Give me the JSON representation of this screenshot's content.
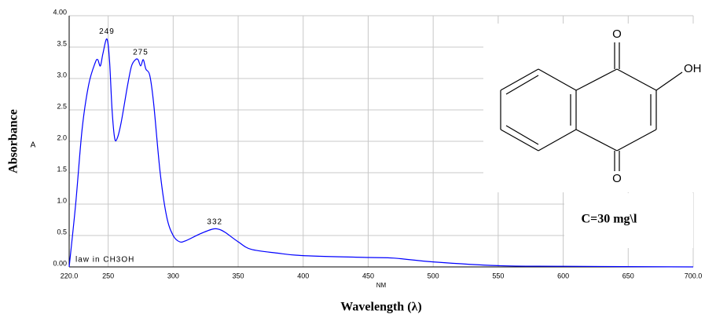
{
  "chart_data": {
    "type": "line",
    "y_label": "Absorbance",
    "y_unit": "A",
    "x_unit": "NM",
    "x_label": "Wavelength (λ)",
    "note": "law in CH3OH",
    "box_text": "C=30 mg\\l",
    "color": "#0000ff",
    "grid": true,
    "x": [
      220,
      225,
      230,
      235,
      240,
      242,
      244,
      246,
      249,
      251,
      253,
      255,
      257,
      260,
      265,
      268,
      271,
      273,
      275,
      277,
      279,
      282,
      285,
      290,
      295,
      300,
      305,
      310,
      320,
      330,
      335,
      340,
      350,
      360,
      380,
      400,
      450,
      470,
      500,
      550,
      600,
      700
    ],
    "values": [
      0,
      1.0,
      2.2,
      2.9,
      3.25,
      3.3,
      3.2,
      3.4,
      3.63,
      3.3,
      2.5,
      2.05,
      2.05,
      2.3,
      2.9,
      3.2,
      3.3,
      3.3,
      3.2,
      3.3,
      3.15,
      3.05,
      2.6,
      1.5,
      0.8,
      0.5,
      0.4,
      0.42,
      0.52,
      0.6,
      0.6,
      0.55,
      0.4,
      0.28,
      0.22,
      0.18,
      0.15,
      0.14,
      0.08,
      0.02,
      0.01,
      0
    ],
    "peaks": [
      {
        "label": "249",
        "x": 249,
        "y": 3.63
      },
      {
        "label": "275",
        "x": 275,
        "y": 3.3
      },
      {
        "label": "332",
        "x": 332,
        "y": 0.6
      }
    ],
    "xlim": [
      220,
      700
    ],
    "ylim": [
      0,
      4
    ],
    "xticks": [
      {
        "value": 220,
        "label": "220.0"
      },
      250,
      300,
      350,
      400,
      450,
      500,
      550,
      600,
      650,
      {
        "value": 700,
        "label": "700.0"
      }
    ],
    "yticks": [
      {
        "value": 0,
        "label": "0.00"
      },
      0.5,
      {
        "value": 1,
        "label": "1.0"
      },
      1.5,
      {
        "value": 2,
        "label": "2.0"
      },
      2.5,
      {
        "value": 3,
        "label": "3.0"
      },
      3.5,
      {
        "value": 4,
        "label": "4.00"
      }
    ]
  },
  "structure": {
    "atoms": [
      "O",
      "O",
      "OH"
    ]
  }
}
